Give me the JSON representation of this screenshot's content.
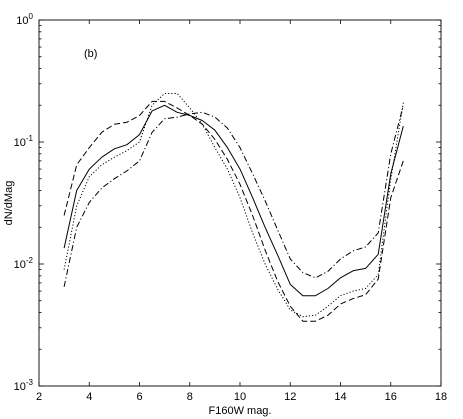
{
  "chart_data": {
    "type": "line",
    "title": "",
    "panel_label": "(b)",
    "xlabel": "F160W mag.",
    "ylabel": "dN/dMag",
    "xlim": [
      2,
      18
    ],
    "ylim": [
      0.001,
      1
    ],
    "yscale": "log",
    "grid": false,
    "xticks": [
      2,
      4,
      6,
      8,
      10,
      12,
      14,
      16,
      18
    ],
    "xtick_labels": [
      "2",
      "4",
      "6",
      "8",
      "10",
      "12",
      "14",
      "16",
      "18"
    ],
    "yticks": [
      0.001,
      0.01,
      0.1,
      1
    ],
    "ytick_labels": [
      {
        "base": "10",
        "exp": "-3"
      },
      {
        "base": "10",
        "exp": "-2"
      },
      {
        "base": "10",
        "exp": "-1"
      },
      {
        "base": "10",
        "exp": "0"
      }
    ],
    "series": [
      {
        "style": "solid",
        "x": [
          3,
          3.5,
          4,
          4.5,
          5,
          5.5,
          6,
          6.5,
          7,
          7.5,
          8,
          8.5,
          9,
          9.5,
          10,
          10.5,
          11,
          11.5,
          12,
          12.5,
          13,
          13.5,
          14,
          14.5,
          15,
          15.5,
          16,
          16.5
        ],
        "y": [
          0.0135,
          0.04,
          0.06,
          0.075,
          0.088,
          0.095,
          0.115,
          0.18,
          0.2,
          0.175,
          0.165,
          0.15,
          0.125,
          0.09,
          0.06,
          0.035,
          0.02,
          0.0118,
          0.0068,
          0.0055,
          0.0055,
          0.0063,
          0.0077,
          0.0088,
          0.0092,
          0.012,
          0.055,
          0.135
        ]
      },
      {
        "style": "dashed",
        "x": [
          3,
          3.5,
          4,
          4.5,
          5,
          5.5,
          6,
          6.5,
          7,
          7.5,
          8,
          8.5,
          9,
          9.5,
          10,
          10.5,
          11,
          11.5,
          12,
          12.5,
          13,
          13.5,
          14,
          14.5,
          15,
          15.5,
          16,
          16.5
        ],
        "y": [
          0.025,
          0.065,
          0.09,
          0.12,
          0.14,
          0.145,
          0.165,
          0.215,
          0.215,
          0.19,
          0.165,
          0.14,
          0.105,
          0.072,
          0.045,
          0.025,
          0.013,
          0.0072,
          0.0045,
          0.0034,
          0.0034,
          0.0038,
          0.0047,
          0.0052,
          0.0056,
          0.0075,
          0.035,
          0.07
        ]
      },
      {
        "style": "dotted",
        "x": [
          3,
          3.5,
          4,
          4.5,
          5,
          5.5,
          6,
          6.5,
          7,
          7.5,
          8,
          8.5,
          9,
          9.5,
          10,
          10.5,
          11,
          11.5,
          12,
          12.5,
          13,
          13.5,
          14,
          14.5,
          15,
          15.5,
          16,
          16.5
        ],
        "y": [
          0.009,
          0.03,
          0.052,
          0.065,
          0.075,
          0.085,
          0.1,
          0.2,
          0.25,
          0.25,
          0.19,
          0.14,
          0.09,
          0.06,
          0.035,
          0.018,
          0.01,
          0.0062,
          0.0042,
          0.0037,
          0.0038,
          0.0045,
          0.0055,
          0.006,
          0.0063,
          0.0082,
          0.05,
          0.21
        ]
      },
      {
        "style": "dashdot",
        "x": [
          3,
          3.5,
          4,
          4.5,
          5,
          5.5,
          6,
          6.5,
          7,
          7.5,
          8,
          8.5,
          9,
          9.5,
          10,
          10.5,
          11,
          11.5,
          12,
          12.5,
          13,
          13.5,
          14,
          14.5,
          15,
          15.5,
          16,
          16.5
        ],
        "y": [
          0.0065,
          0.02,
          0.032,
          0.042,
          0.05,
          0.058,
          0.07,
          0.12,
          0.155,
          0.16,
          0.17,
          0.175,
          0.16,
          0.13,
          0.09,
          0.055,
          0.033,
          0.019,
          0.011,
          0.0085,
          0.0077,
          0.0087,
          0.011,
          0.0128,
          0.0138,
          0.018,
          0.08,
          0.2
        ]
      }
    ]
  }
}
